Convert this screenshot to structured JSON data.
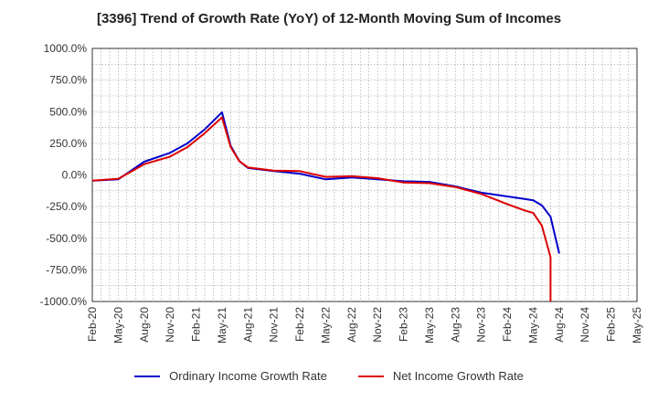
{
  "chart_data": {
    "type": "line",
    "title": "[3396]  Trend of Growth Rate (YoY) of 12-Month Moving Sum of Incomes",
    "xlabel": "",
    "ylabel": "",
    "ylim": [
      -1000,
      1000
    ],
    "y_ticks": [
      1000,
      750,
      500,
      250,
      0,
      -250,
      -500,
      -750,
      -1000
    ],
    "y_tick_labels": [
      "1000.0%",
      "750.0%",
      "500.0%",
      "250.0%",
      "0.0%",
      "-250.0%",
      "-500.0%",
      "-750.0%",
      "-1000.0%"
    ],
    "x_start": "2020-02",
    "x_end": "2025-05",
    "x_tick_labels": [
      "Feb-20",
      "May-20",
      "Aug-20",
      "Nov-20",
      "Feb-21",
      "May-21",
      "Aug-21",
      "Nov-21",
      "Feb-22",
      "May-22",
      "Aug-22",
      "Nov-22",
      "Feb-23",
      "May-23",
      "Aug-23",
      "Nov-23",
      "Feb-24",
      "May-24",
      "Aug-24",
      "Nov-24",
      "Feb-25",
      "May-25"
    ],
    "grid": true,
    "legend_position": "bottom",
    "series": [
      {
        "name": "Ordinary Income Growth Rate",
        "color": "#0000cc",
        "points": [
          [
            "2020-02",
            -45
          ],
          [
            "2020-05",
            -35
          ],
          [
            "2020-08",
            105
          ],
          [
            "2020-11",
            175
          ],
          [
            "2021-01",
            250
          ],
          [
            "2021-03",
            360
          ],
          [
            "2021-05",
            495
          ],
          [
            "2021-06",
            230
          ],
          [
            "2021-07",
            110
          ],
          [
            "2021-08",
            55
          ],
          [
            "2021-11",
            30
          ],
          [
            "2022-02",
            10
          ],
          [
            "2022-05",
            -35
          ],
          [
            "2022-08",
            -20
          ],
          [
            "2022-11",
            -35
          ],
          [
            "2023-02",
            -50
          ],
          [
            "2023-05",
            -55
          ],
          [
            "2023-08",
            -90
          ],
          [
            "2023-11",
            -140
          ],
          [
            "2024-02",
            -170
          ],
          [
            "2024-04",
            -190
          ],
          [
            "2024-05",
            -200
          ],
          [
            "2024-06",
            -240
          ],
          [
            "2024-07",
            -330
          ],
          [
            "2024-08",
            -620
          ]
        ]
      },
      {
        "name": "Net Income Growth Rate",
        "color": "#dd0000",
        "points": [
          [
            "2020-02",
            -45
          ],
          [
            "2020-05",
            -30
          ],
          [
            "2020-08",
            85
          ],
          [
            "2020-11",
            145
          ],
          [
            "2021-01",
            220
          ],
          [
            "2021-03",
            330
          ],
          [
            "2021-05",
            455
          ],
          [
            "2021-06",
            220
          ],
          [
            "2021-07",
            110
          ],
          [
            "2021-08",
            60
          ],
          [
            "2021-11",
            35
          ],
          [
            "2022-02",
            30
          ],
          [
            "2022-05",
            -15
          ],
          [
            "2022-08",
            -10
          ],
          [
            "2022-11",
            -25
          ],
          [
            "2023-02",
            -60
          ],
          [
            "2023-05",
            -65
          ],
          [
            "2023-08",
            -95
          ],
          [
            "2023-11",
            -150
          ],
          [
            "2024-02",
            -230
          ],
          [
            "2024-04",
            -280
          ],
          [
            "2024-05",
            -300
          ],
          [
            "2024-06",
            -400
          ],
          [
            "2024-07",
            -650
          ],
          [
            "2024-07",
            -1000
          ]
        ]
      }
    ]
  }
}
